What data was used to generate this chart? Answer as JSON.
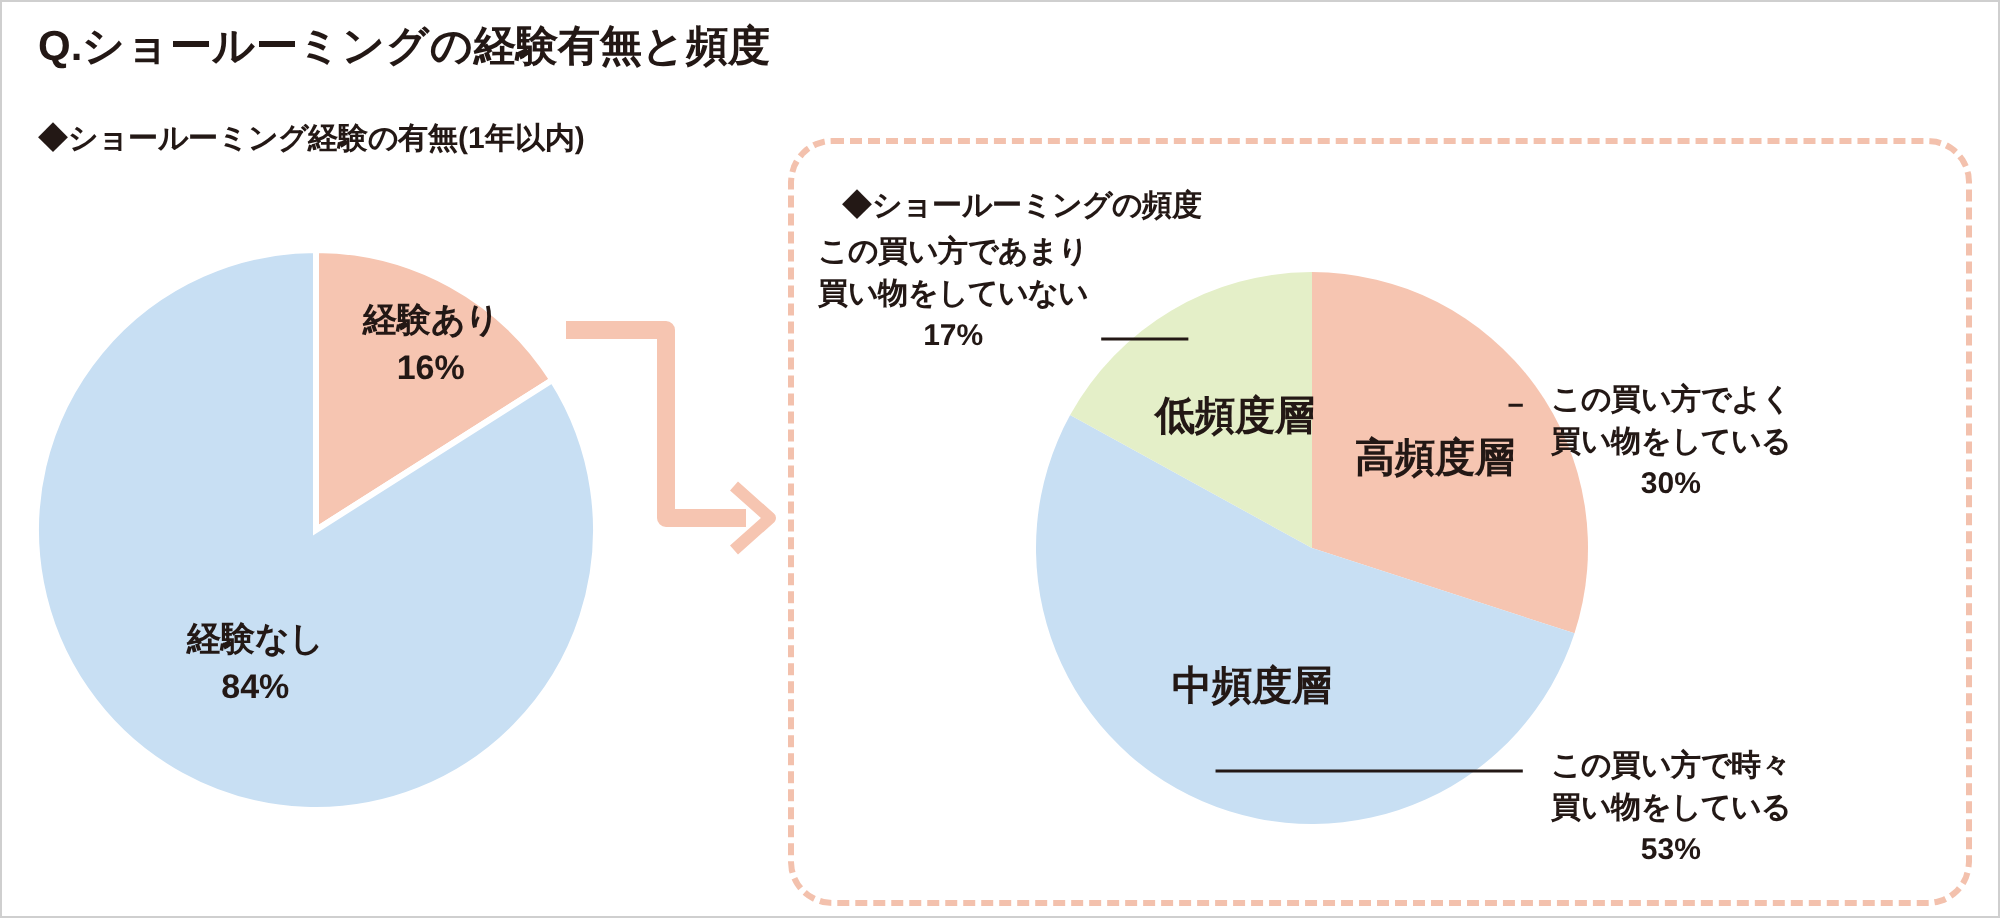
{
  "chart_data": [
    {
      "type": "pie",
      "title": "Q.ショールーミングの経験有無と頻度",
      "subtitle": "◆ショールーミング経験の有無(1年以内)",
      "categories": [
        "経験あり",
        "経験なし"
      ],
      "values": [
        16,
        84
      ],
      "colors": [
        "#f6c5b1",
        "#c8dff3"
      ],
      "value_labels": [
        "16%",
        "84%"
      ],
      "legend": false
    },
    {
      "type": "pie",
      "title": "◆ショールーミングの頻度",
      "categories": [
        "高頻度層",
        "中頻度層",
        "低頻度層"
      ],
      "values": [
        30,
        53,
        17
      ],
      "colors": [
        "#f6c5b1",
        "#c8dff3",
        "#e4efc8"
      ],
      "value_labels": [
        "30%",
        "53%",
        "17%"
      ],
      "annotations": [
        "この買い方でよく買い物をしている",
        "この買い方で時々買い物をしている",
        "この買い方であまり買い物をしていない"
      ],
      "legend": false
    }
  ]
}
